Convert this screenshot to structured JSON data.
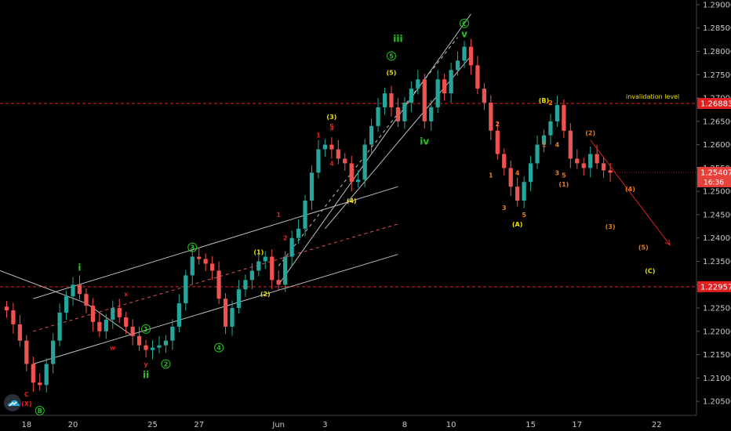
{
  "chart_data": {
    "type": "candlestick",
    "instrument_scale": "price",
    "ylim": [
      1.202,
      1.291
    ],
    "y_ticks": [
      "1.20500",
      "1.21000",
      "1.21500",
      "1.22000",
      "1.22500",
      "1.23000",
      "1.23500",
      "1.24000",
      "1.24500",
      "1.25000",
      "1.25500",
      "1.26000",
      "1.26500",
      "1.27000",
      "1.27500",
      "1.28000",
      "1.28500",
      "1.29000"
    ],
    "x_ticks": [
      {
        "label": "18",
        "bar": 3
      },
      {
        "label": "20",
        "bar": 10
      },
      {
        "label": "25",
        "bar": 22
      },
      {
        "label": "27",
        "bar": 29
      },
      {
        "label": "Jun",
        "bar": 41
      },
      {
        "label": "3",
        "bar": 48
      },
      {
        "label": "8",
        "bar": 60
      },
      {
        "label": "10",
        "bar": 67
      },
      {
        "label": "15",
        "bar": 79
      },
      {
        "label": "17",
        "bar": 86
      },
      {
        "label": "22",
        "bar": 98
      }
    ],
    "x_bar_range": [
      -1,
      104
    ],
    "closes": [
      1.2245,
      1.2215,
      1.218,
      1.213,
      1.209,
      1.2085,
      1.213,
      1.218,
      1.224,
      1.2275,
      1.23,
      1.228,
      1.2255,
      1.222,
      1.22,
      1.2225,
      1.225,
      1.223,
      1.221,
      1.219,
      1.217,
      1.216,
      1.2165,
      1.217,
      1.218,
      1.221,
      1.226,
      1.232,
      1.236,
      1.2355,
      1.2345,
      1.233,
      1.227,
      1.221,
      1.225,
      1.229,
      1.231,
      1.233,
      1.235,
      1.236,
      1.231,
      1.23,
      1.236,
      1.24,
      1.242,
      1.248,
      1.254,
      1.259,
      1.26,
      1.259,
      1.257,
      1.256,
      1.252,
      1.2525,
      1.26,
      1.264,
      1.268,
      1.271,
      1.268,
      1.265,
      1.269,
      1.272,
      1.274,
      1.265,
      1.268,
      1.274,
      1.271,
      1.276,
      1.278,
      1.281,
      1.277,
      1.272,
      1.269,
      1.263,
      1.258,
      1.255,
      1.251,
      1.248,
      1.252,
      1.256,
      1.26,
      1.262,
      1.265,
      1.2685,
      1.263,
      1.257,
      1.256,
      1.255,
      1.258,
      1.256,
      1.2545,
      1.254
    ],
    "horizontal_levels": [
      {
        "value": 1.26883,
        "label": "1.26883",
        "note": "invalidation level",
        "color": "#e02020"
      },
      {
        "value": 1.22957,
        "label": "1.22957",
        "note": "",
        "color": "#e02020"
      }
    ],
    "last_price": {
      "value": 1.25407,
      "label": "1.25407",
      "timer": "16:36",
      "color": "#e8413c"
    },
    "wave_labels": [
      {
        "text": "C",
        "bar": 3,
        "price": 1.206,
        "color": "#e02020",
        "circle": false
      },
      {
        "text": "(X)",
        "bar": 3,
        "price": 1.204,
        "color": "#e02020",
        "circle": false
      },
      {
        "text": "B",
        "bar": 5,
        "price": 1.2025,
        "color": "#26c026",
        "circle": true
      },
      {
        "text": "i",
        "bar": 11,
        "price": 1.233,
        "color": "#26c026",
        "circle": false,
        "big": true
      },
      {
        "text": "w",
        "bar": 16,
        "price": 1.216,
        "color": "#e02020",
        "circle": false
      },
      {
        "text": "x",
        "bar": 18,
        "price": 1.2275,
        "color": "#e02020",
        "circle": false
      },
      {
        "text": "y",
        "bar": 21,
        "price": 1.2125,
        "color": "#e02020",
        "circle": false
      },
      {
        "text": "1",
        "bar": 21,
        "price": 1.22,
        "color": "#26c026",
        "circle": true
      },
      {
        "text": "ii",
        "bar": 21,
        "price": 1.21,
        "color": "#26c026",
        "circle": false,
        "big": true
      },
      {
        "text": "2",
        "bar": 24,
        "price": 1.2125,
        "color": "#26c026",
        "circle": true
      },
      {
        "text": "3",
        "bar": 28,
        "price": 1.2375,
        "color": "#26c026",
        "circle": true
      },
      {
        "text": "4",
        "bar": 32,
        "price": 1.216,
        "color": "#26c026",
        "circle": true
      },
      {
        "text": "(1)",
        "bar": 38,
        "price": 1.2365,
        "color": "#e6e000",
        "circle": false
      },
      {
        "text": "(2)",
        "bar": 39,
        "price": 1.2275,
        "color": "#e6e000",
        "circle": false
      },
      {
        "text": "(3)",
        "bar": 49,
        "price": 1.2655,
        "color": "#e6e000",
        "circle": false
      },
      {
        "text": "(4)",
        "bar": 52,
        "price": 1.2475,
        "color": "#e6e000",
        "circle": false
      },
      {
        "text": "(5)",
        "bar": 58,
        "price": 1.275,
        "color": "#e6e000",
        "circle": false
      },
      {
        "text": "5",
        "bar": 58,
        "price": 1.2785,
        "color": "#26c026",
        "circle": true
      },
      {
        "text": "iii",
        "bar": 59,
        "price": 1.282,
        "color": "#26c026",
        "circle": false,
        "big": true
      },
      {
        "text": "iv",
        "bar": 63,
        "price": 1.26,
        "color": "#26c026",
        "circle": false,
        "big": true
      },
      {
        "text": "v",
        "bar": 69,
        "price": 1.283,
        "color": "#26c026",
        "circle": false,
        "big": true
      },
      {
        "text": "C",
        "bar": 69,
        "price": 1.2855,
        "color": "#26c026",
        "circle": true
      },
      {
        "text": "(A)",
        "bar": 77,
        "price": 1.2425,
        "color": "#e6e000",
        "circle": false
      },
      {
        "text": "(B)",
        "bar": 81,
        "price": 1.269,
        "color": "#e6e000",
        "circle": false
      },
      {
        "text": "(C)",
        "bar": 97,
        "price": 1.2325,
        "color": "#e6e000",
        "circle": false
      },
      {
        "text": "(2)",
        "bar": 88,
        "price": 1.262,
        "color": "#e87c1e",
        "circle": false
      },
      {
        "text": "(4)",
        "bar": 94,
        "price": 1.25,
        "color": "#e87c1e",
        "circle": false
      },
      {
        "text": "(3)",
        "bar": 91,
        "price": 1.242,
        "color": "#e87c1e",
        "circle": false
      },
      {
        "text": "(5)",
        "bar": 96,
        "price": 1.2375,
        "color": "#e87c1e",
        "circle": false
      },
      {
        "text": "(1)",
        "bar": 84,
        "price": 1.251,
        "color": "#e87c1e",
        "circle": false
      },
      {
        "text": "1",
        "bar": 73,
        "price": 1.253,
        "color": "#e87c1e",
        "circle": false
      },
      {
        "text": "2",
        "bar": 74,
        "price": 1.264,
        "color": "#e87c1e",
        "circle": false
      },
      {
        "text": "3",
        "bar": 75,
        "price": 1.246,
        "color": "#e87c1e",
        "circle": false
      },
      {
        "text": "4",
        "bar": 77,
        "price": 1.2535,
        "color": "#e87c1e",
        "circle": false
      },
      {
        "text": "5",
        "bar": 78,
        "price": 1.2445,
        "color": "#e87c1e",
        "circle": false
      },
      {
        "text": "2",
        "bar": 82,
        "price": 1.2685,
        "color": "#e87c1e",
        "circle": false
      },
      {
        "text": "1",
        "bar": 81,
        "price": 1.2595,
        "color": "#e87c1e",
        "circle": false
      },
      {
        "text": "4",
        "bar": 83,
        "price": 1.2595,
        "color": "#e87c1e",
        "circle": false
      },
      {
        "text": "3",
        "bar": 83,
        "price": 1.2535,
        "color": "#e87c1e",
        "circle": false
      },
      {
        "text": "5",
        "bar": 84,
        "price": 1.253,
        "color": "#e87c1e",
        "circle": false
      },
      {
        "text": "1",
        "bar": 47,
        "price": 1.2615,
        "color": "#e02020",
        "circle": false
      },
      {
        "text": "3",
        "bar": 49,
        "price": 1.263,
        "color": "#e02020",
        "circle": false
      },
      {
        "text": "5",
        "bar": 49,
        "price": 1.2635,
        "color": "#e02020",
        "circle": false
      },
      {
        "text": "4",
        "bar": 49,
        "price": 1.2555,
        "color": "#e02020",
        "circle": false
      },
      {
        "text": "2",
        "bar": 42,
        "price": 1.2395,
        "color": "#e02020",
        "circle": false
      },
      {
        "text": "1",
        "bar": 41,
        "price": 1.2445,
        "color": "#e02020",
        "circle": false
      }
    ],
    "channel_lines": [
      {
        "x1": -1,
        "y1": 1.233,
        "x2": 12,
        "y2": 1.226,
        "color": "#bdbdbd",
        "style": "solid"
      },
      {
        "x1": 12,
        "y1": 1.226,
        "x2": 19,
        "y2": 1.219,
        "color": "#bdbdbd",
        "style": "solid"
      },
      {
        "x1": 4,
        "y1": 1.227,
        "x2": 59,
        "y2": 1.251,
        "color": "#bdbdbd",
        "style": "solid"
      },
      {
        "x1": 4,
        "y1": 1.213,
        "x2": 59,
        "y2": 1.2365,
        "color": "#bdbdbd",
        "style": "solid"
      },
      {
        "x1": 4,
        "y1": 1.22,
        "x2": 59,
        "y2": 1.243,
        "color": "#e05050",
        "style": "dashed"
      },
      {
        "x1": 41,
        "y1": 1.23,
        "x2": 70,
        "y2": 1.288,
        "color": "#bdbdbd",
        "style": "solid"
      },
      {
        "x1": 48,
        "y1": 1.242,
        "x2": 70,
        "y2": 1.279,
        "color": "#bdbdbd",
        "style": "solid"
      },
      {
        "x1": 41,
        "y1": 1.234,
        "x2": 68,
        "y2": 1.283,
        "color": "#bdbdbd",
        "style": "dashed"
      }
    ],
    "projection_arrow": {
      "x1": 88,
      "y1": 1.261,
      "x2": 100,
      "y2": 1.2385,
      "color": "#e02020"
    },
    "annotation": {
      "text": "invalidation level",
      "color": "#e6e000"
    },
    "colors": {
      "up": "#26a69a",
      "down": "#ef5350",
      "axis_text": "#c9c9c9",
      "background": "#000000"
    }
  }
}
